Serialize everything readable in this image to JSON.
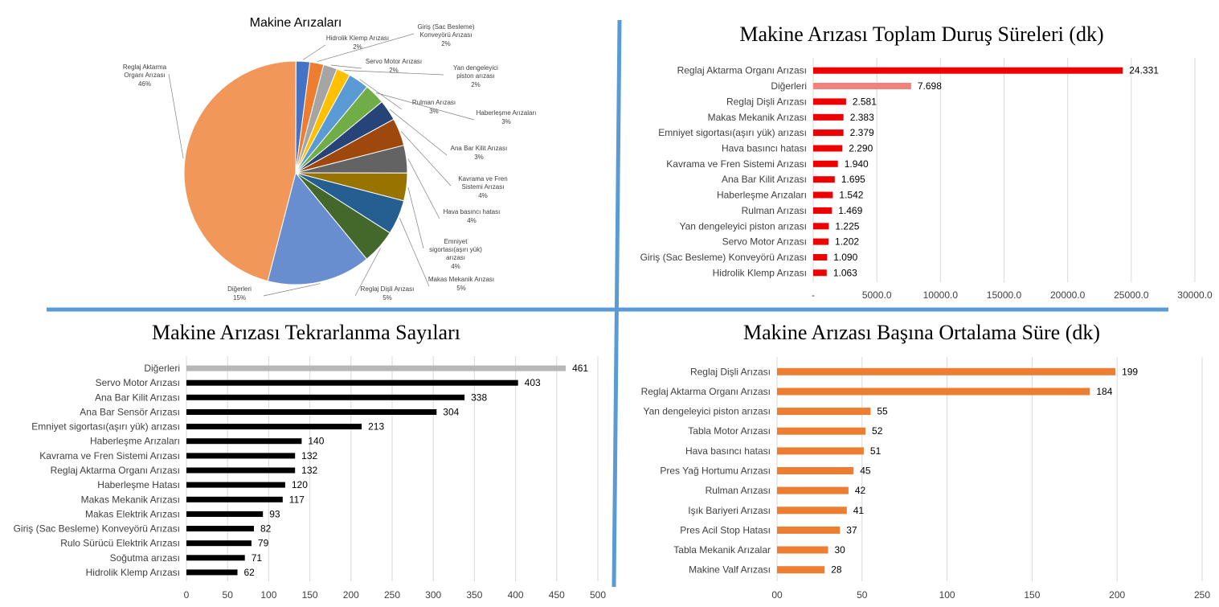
{
  "colors": {
    "divider": "#5b9bd5",
    "red": "#ee0000",
    "red_light": "#f4807c",
    "black": "#000000",
    "gray_bar": "#b7b7b7",
    "orange": "#ed7d31",
    "grid": "#d9d9d9",
    "axis_text": "#404040"
  },
  "chart_data": [
    {
      "id": "pie",
      "type": "pie",
      "title": "Makine Arızaları",
      "slices": [
        {
          "label": "Hidrolik Klemp Arızası",
          "pct_label": "2%",
          "value": 2,
          "color": "#4472c4"
        },
        {
          "label": "Giriş (Sac Besleme) Konveyörü Arızası",
          "pct_label": "2%",
          "value": 2,
          "color": "#ed7d31"
        },
        {
          "label": "Servo Motor Arızası",
          "pct_label": "2%",
          "value": 2,
          "color": "#a5a5a5"
        },
        {
          "label": "Yan dengeleyici piston arızası",
          "pct_label": "2%",
          "value": 2,
          "color": "#ffc000"
        },
        {
          "label": "Rulman Arızası",
          "pct_label": "3%",
          "value": 3,
          "color": "#5b9bd5"
        },
        {
          "label": "Haberleşme Arızaları",
          "pct_label": "3%",
          "value": 3,
          "color": "#70ad47"
        },
        {
          "label": "Ana Bar Kilit Arızası",
          "pct_label": "3%",
          "value": 3,
          "color": "#264478"
        },
        {
          "label": "Kavrama ve Fren Sistemi Arızası",
          "pct_label": "4%",
          "value": 4,
          "color": "#9e480e"
        },
        {
          "label": "Hava basıncı hatası",
          "pct_label": "4%",
          "value": 4,
          "color": "#636363"
        },
        {
          "label": "Emniyet sigortası(aşırı yük) arızası",
          "pct_label": "4%",
          "value": 4,
          "color": "#997300"
        },
        {
          "label": "Makas Mekanik Arızası",
          "pct_label": "5%",
          "value": 5,
          "color": "#255e91"
        },
        {
          "label": "Reglaj Dişli Arızası",
          "pct_label": "5%",
          "value": 5,
          "color": "#43682b"
        },
        {
          "label": "Diğerleri",
          "pct_label": "15%",
          "value": 15,
          "color": "#698ed0"
        },
        {
          "label": "Reglaj Aktarma Organı Arızası",
          "pct_label": "46%",
          "value": 46,
          "color": "#f1975a"
        }
      ]
    },
    {
      "id": "downtime",
      "type": "bar",
      "orientation": "horizontal",
      "title": "Makine Arızası Toplam Duruş Süreleri (dk)",
      "xlim": [
        0,
        30000
      ],
      "ticks": [
        "-",
        "5000.0",
        "10000.0",
        "15000.0",
        "20000.0",
        "25000.0",
        "30000.0"
      ],
      "grid": true,
      "categories": [
        "Reglaj Aktarma Organı Arızası",
        "Diğerleri",
        "Reglaj Dişli Arızası",
        "Makas Mekanik Arızası",
        "Emniyet sigortası(aşırı yük) arızası",
        "Hava basıncı hatası",
        "Kavrama ve Fren Sistemi Arızası",
        "Ana Bar Kilit Arızası",
        "Haberleşme Arızaları",
        "Rulman Arızası",
        "Yan dengeleyici piston arızası",
        "Servo Motor Arızası",
        "Giriş (Sac Besleme) Konveyörü Arızası",
        "Hidrolik Klemp Arızası"
      ],
      "values": [
        24331,
        7698,
        2581,
        2383,
        2379,
        2290,
        1940,
        1695,
        1542,
        1469,
        1225,
        1202,
        1090,
        1063
      ],
      "value_labels": [
        "24.331",
        "7.698",
        "2.581",
        "2.383",
        "2.379",
        "2.290",
        "1.940",
        "1.695",
        "1.542",
        "1.469",
        "1.225",
        "1.202",
        "1.090",
        "1.063"
      ],
      "highlight_index": 1
    },
    {
      "id": "frequency",
      "type": "bar",
      "orientation": "horizontal",
      "title": "Makine Arızası Tekrarlanma Sayıları",
      "xlim": [
        0,
        500
      ],
      "ticks": [
        "0",
        "50",
        "100",
        "150",
        "200",
        "250",
        "300",
        "350",
        "400",
        "450",
        "500"
      ],
      "grid": true,
      "categories": [
        "Diğerleri",
        "Servo Motor Arızası",
        "Ana Bar Kilit Arızası",
        "Ana Bar Sensör Arızası",
        "Emniyet sigortası(aşırı yük) arızası",
        "Haberleşme Arızaları",
        "Kavrama ve Fren Sistemi Arızası",
        "Reglaj Aktarma Organı Arızası",
        "Haberleşme Hatası",
        "Makas Mekanik Arızası",
        "Makas Elektrik Arızası",
        "Giriş (Sac Besleme) Konveyörü Arızası",
        "Rulo Sürücü Elektrik Arızası",
        "Soğutma arızası",
        "Hidrolik Klemp Arızası"
      ],
      "values": [
        461,
        403,
        338,
        304,
        213,
        140,
        132,
        132,
        120,
        117,
        93,
        82,
        79,
        71,
        62
      ],
      "value_labels": [
        "461",
        "403",
        "338",
        "304",
        "213",
        "140",
        "132",
        "132",
        "120",
        "117",
        "93",
        "82",
        "79",
        "71",
        "62"
      ],
      "highlight_index": 0
    },
    {
      "id": "average",
      "type": "bar",
      "orientation": "horizontal",
      "title": "Makine Arızası Başına Ortalama Süre (dk)",
      "xlim": [
        0,
        250
      ],
      "ticks": [
        "00",
        "50",
        "100",
        "150",
        "200",
        "250"
      ],
      "grid": true,
      "categories": [
        "Reglaj Dişli Arızası",
        "Reglaj Aktarma Organı Arızası",
        "Yan dengeleyici piston arızası",
        "Tabla Motor Arızası",
        "Hava basıncı hatası",
        "Pres Yağ Hortumu Arızası",
        "Rulman Arızası",
        "Işık Bariyeri Arızası",
        "Pres Acil Stop Hatası",
        "Tabla Mekanik Arızalar",
        "Makine Valf Arızası"
      ],
      "values": [
        199,
        184,
        55,
        52,
        51,
        45,
        42,
        41,
        37,
        30,
        28
      ],
      "value_labels": [
        "199",
        "184",
        "55",
        "52",
        "51",
        "45",
        "42",
        "41",
        "37",
        "30",
        "28"
      ]
    }
  ]
}
